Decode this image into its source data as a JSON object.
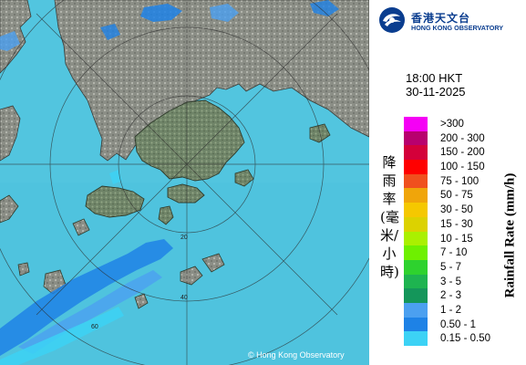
{
  "map": {
    "copyright": "© Hong Kong Observatory",
    "range_ring_labels": [
      "20",
      "40",
      "60"
    ],
    "sea_color": "#4fc3de",
    "land_color": "#8b8e86"
  },
  "header": {
    "logo_chinese": "香港天文台",
    "logo_english": "HONG KONG OBSERVATORY"
  },
  "timestamp": {
    "time": "18:00 HKT",
    "date": "30-11-2025"
  },
  "legend": {
    "title_chinese": "降雨率(毫米/小時)",
    "title_english": "Rainfall Rate (mm/h)",
    "items": [
      {
        "label": ">300",
        "color": "#f500f5"
      },
      {
        "label": "200 - 300",
        "color": "#b8006e"
      },
      {
        "label": "150 - 200",
        "color": "#d4003a"
      },
      {
        "label": "100 - 150",
        "color": "#ff0000"
      },
      {
        "label": "75 - 100",
        "color": "#f0501e"
      },
      {
        "label": "50 - 75",
        "color": "#f0a50a"
      },
      {
        "label": "30 - 50",
        "color": "#f5c800"
      },
      {
        "label": "15 - 30",
        "color": "#dcd200"
      },
      {
        "label": "10 - 15",
        "color": "#aaf000"
      },
      {
        "label": "7 - 10",
        "color": "#6ef000"
      },
      {
        "label": "5 - 7",
        "color": "#2ed22e"
      },
      {
        "label": "3 - 5",
        "color": "#1eb450"
      },
      {
        "label": "2 - 3",
        "color": "#14965a"
      },
      {
        "label": "1 - 2",
        "color": "#4ba0f0"
      },
      {
        "label": "0.50 - 1",
        "color": "#1e82e6"
      },
      {
        "label": "0.15 - 0.50",
        "color": "#3cd2f5"
      }
    ]
  }
}
